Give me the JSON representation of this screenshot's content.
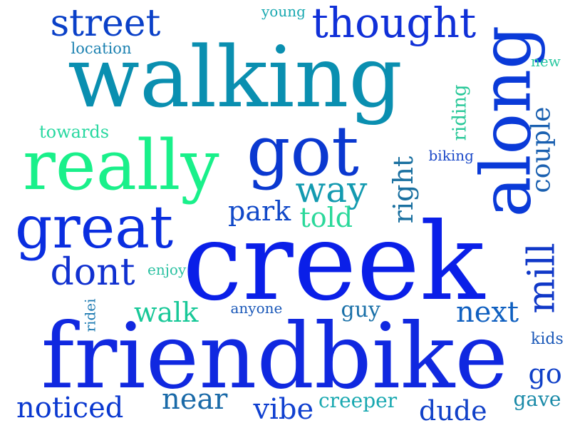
{
  "words": [
    {
      "text": "creek",
      "weight": 1.0,
      "color": "#0a1fe8",
      "orientation": "horizontal"
    },
    {
      "text": "friendbike",
      "weight": 0.95,
      "color": "#1028e0",
      "orientation": "horizontal"
    },
    {
      "text": "walking",
      "weight": 0.9,
      "color": "#0a8fb0",
      "orientation": "horizontal"
    },
    {
      "text": "along",
      "weight": 0.7,
      "color": "#0a3ad8",
      "orientation": "vertical"
    },
    {
      "text": "got",
      "weight": 0.65,
      "color": "#0a38d0",
      "orientation": "horizontal"
    },
    {
      "text": "really",
      "weight": 0.65,
      "color": "#19f08a",
      "orientation": "horizontal"
    },
    {
      "text": "great",
      "weight": 0.6,
      "color": "#0a2ee0",
      "orientation": "horizontal"
    },
    {
      "text": "thought",
      "weight": 0.45,
      "color": "#1030d8",
      "orientation": "horizontal"
    },
    {
      "text": "dont",
      "weight": 0.4,
      "color": "#1030d0",
      "orientation": "horizontal"
    },
    {
      "text": "street",
      "weight": 0.4,
      "color": "#0a40c8",
      "orientation": "horizontal"
    },
    {
      "text": "way",
      "weight": 0.38,
      "color": "#139ab0",
      "orientation": "horizontal"
    },
    {
      "text": "mill",
      "weight": 0.37,
      "color": "#1038c8",
      "orientation": "vertical"
    },
    {
      "text": "next",
      "weight": 0.3,
      "color": "#1060c0",
      "orientation": "horizontal"
    },
    {
      "text": "vibe",
      "weight": 0.3,
      "color": "#1040d0",
      "orientation": "horizontal"
    },
    {
      "text": "noticed",
      "weight": 0.3,
      "color": "#0a38d0",
      "orientation": "horizontal"
    },
    {
      "text": "near",
      "weight": 0.3,
      "color": "#1a6aa8",
      "orientation": "horizontal"
    },
    {
      "text": "dude",
      "weight": 0.28,
      "color": "#1040c8",
      "orientation": "horizontal"
    },
    {
      "text": "walk",
      "weight": 0.28,
      "color": "#18c898",
      "orientation": "horizontal"
    },
    {
      "text": "right",
      "weight": 0.28,
      "color": "#1a70a0",
      "orientation": "vertical"
    },
    {
      "text": "go",
      "weight": 0.28,
      "color": "#1040c8",
      "orientation": "horizontal"
    },
    {
      "text": "couple",
      "weight": 0.28,
      "color": "#1a60b0",
      "orientation": "vertical"
    },
    {
      "text": "park",
      "weight": 0.25,
      "color": "#1048c8",
      "orientation": "horizontal"
    },
    {
      "text": "told",
      "weight": 0.25,
      "color": "#2ad89a",
      "orientation": "horizontal"
    },
    {
      "text": "guy",
      "weight": 0.2,
      "color": "#1a70a8",
      "orientation": "horizontal"
    },
    {
      "text": "gave",
      "weight": 0.2,
      "color": "#1a8aa8",
      "orientation": "horizontal"
    },
    {
      "text": "creeper",
      "weight": 0.2,
      "color": "#18a8b0",
      "orientation": "horizontal"
    },
    {
      "text": "riding",
      "weight": 0.18,
      "color": "#28c898",
      "orientation": "vertical"
    },
    {
      "text": "towards",
      "weight": 0.18,
      "color": "#28d8a0",
      "orientation": "horizontal"
    },
    {
      "text": "kids",
      "weight": 0.14,
      "color": "#1a58b8",
      "orientation": "horizontal"
    },
    {
      "text": "location",
      "weight": 0.14,
      "color": "#1a80b0",
      "orientation": "horizontal"
    },
    {
      "text": "young",
      "weight": 0.14,
      "color": "#18a8b0",
      "orientation": "horizontal"
    },
    {
      "text": "enjoy",
      "weight": 0.14,
      "color": "#28c0a0",
      "orientation": "horizontal"
    },
    {
      "text": "anyone",
      "weight": 0.14,
      "color": "#1a58b8",
      "orientation": "horizontal"
    },
    {
      "text": "biking",
      "weight": 0.14,
      "color": "#1a48c8",
      "orientation": "horizontal"
    },
    {
      "text": "new",
      "weight": 0.14,
      "color": "#28c8a0",
      "orientation": "horizontal"
    },
    {
      "text": "ridei",
      "weight": 0.12,
      "color": "#1a78b0",
      "orientation": "vertical"
    }
  ]
}
